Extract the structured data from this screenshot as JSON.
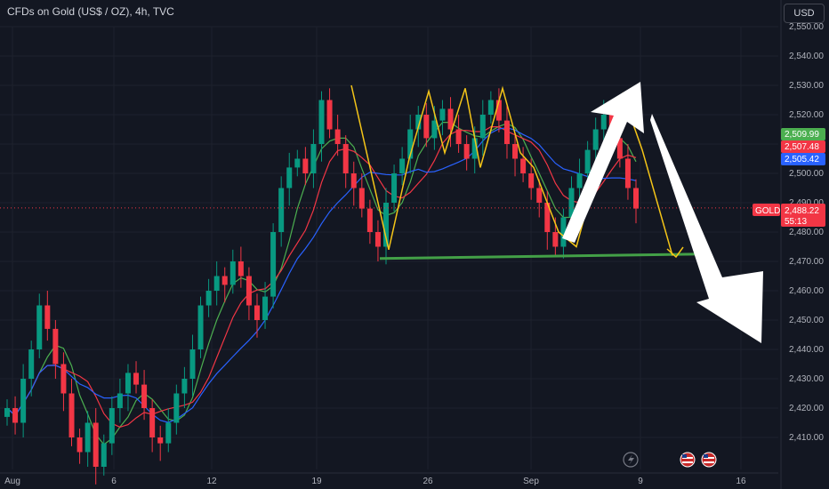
{
  "header": {
    "title": "CFDs on Gold (US$ / OZ), 4h, TVC",
    "currency_button": "USD"
  },
  "price_tags": {
    "symbol": "GOLD",
    "last": "2,488.22",
    "countdown": "55:13",
    "ma_green": "2,509.99",
    "ma_red": "2,507.48",
    "ma_blue": "2,505.42"
  },
  "colors": {
    "background": "#131722",
    "up": "#089981",
    "down": "#f23645",
    "ma_green": "#4caf50",
    "ma_red": "#f23645",
    "ma_blue": "#2962ff",
    "pattern": "#f5c518",
    "support": "#43a047",
    "arrow": "#ffffff"
  },
  "icons": [
    "lightning-icon",
    "us-flag-icon",
    "us-flag-icon"
  ],
  "chart_data": {
    "type": "candlestick",
    "title": "CFDs on Gold (US$ / OZ), 4h, TVC",
    "ylim": [
      2400,
      2555
    ],
    "y_ticks": [
      2410,
      2420,
      2430,
      2440,
      2450,
      2460,
      2470,
      2480,
      2490,
      2500,
      2510,
      2520,
      2530,
      2540,
      2550
    ],
    "y_tick_labels": [
      "2,410.00",
      "2,420.00",
      "2,430.00",
      "2,440.00",
      "2,450.00",
      "2,460.00",
      "2,470.00",
      "2,480.00",
      "2,490.00",
      "2,500.00",
      "2,510.00",
      "2,520.00",
      "2,530.00",
      "2,540.00",
      "2,550.00"
    ],
    "x_ticks": [
      "Aug",
      "6",
      "12",
      "19",
      "26",
      "Sep",
      "9",
      "16"
    ],
    "current_price": 2488.22,
    "support_level": 2471,
    "pattern_points": [
      [
        2530,
        2520
      ],
      [
        2501,
        2474
      ],
      [
        2528,
        2507
      ],
      [
        2527,
        2506
      ],
      [
        2528,
        2502
      ],
      [
        2528,
        2474
      ],
      [
        2530,
        2472
      ],
      [
        2530,
        2504
      ],
      [
        2525,
        2473
      ]
    ],
    "ohlc_closes": [
      2420,
      2415,
      2430,
      2440,
      2455,
      2447,
      2435,
      2425,
      2410,
      2405,
      2415,
      2400,
      2408,
      2420,
      2425,
      2432,
      2428,
      2420,
      2410,
      2408,
      2415,
      2425,
      2430,
      2440,
      2455,
      2460,
      2465,
      2462,
      2470,
      2465,
      2455,
      2450,
      2458,
      2480,
      2495,
      2502,
      2505,
      2500,
      2510,
      2525,
      2515,
      2510,
      2500,
      2495,
      2488,
      2480,
      2475,
      2490,
      2500,
      2505,
      2515,
      2520,
      2512,
      2518,
      2522,
      2515,
      2510,
      2505,
      2512,
      2520,
      2525,
      2518,
      2510,
      2505,
      2500,
      2495,
      2490,
      2480,
      2475,
      2485,
      2495,
      2500,
      2508,
      2515,
      2520,
      2512,
      2505,
      2495,
      2488
    ]
  }
}
